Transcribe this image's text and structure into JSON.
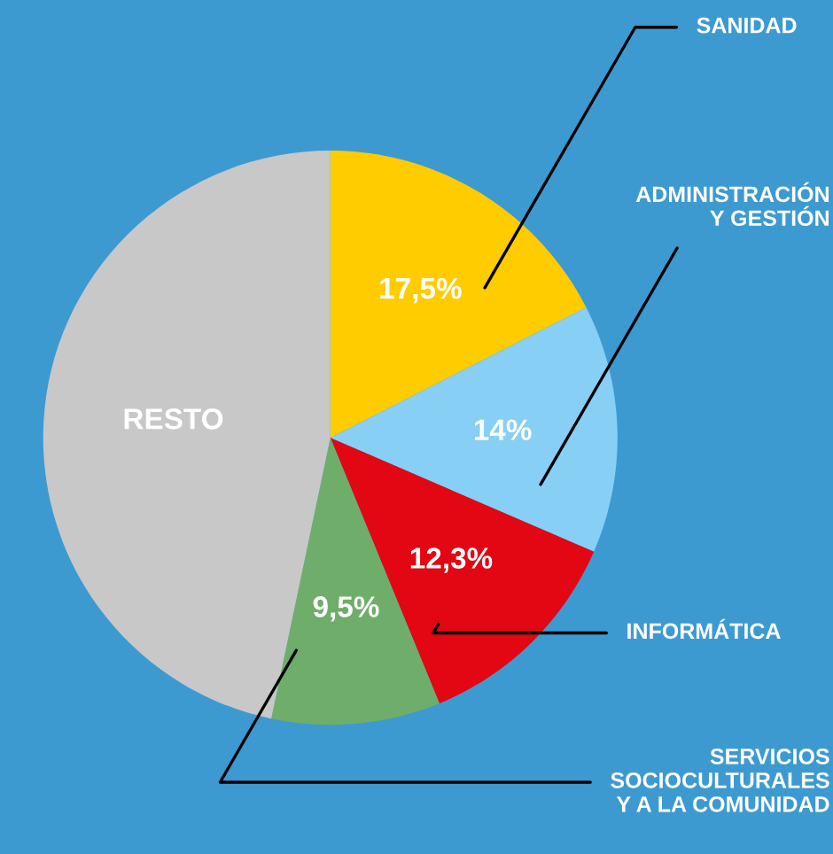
{
  "chart_data": {
    "type": "pie",
    "categories": [
      "SANIDAD",
      "ADMINISTRACIÓN\nY GESTIÓN",
      "INFORMÁTICA",
      "SERVICIOS\nSOCIOCULTURALES\nY A LA COMUNIDAD",
      "RESTO"
    ],
    "values": [
      17.5,
      14,
      12.3,
      9.5,
      46.7
    ],
    "colors": [
      "#ffcc00",
      "#87cff5",
      "#e30613",
      "#6fae6a",
      "#c8c8c8"
    ],
    "value_labels": [
      "17,5%",
      "14%",
      "12,3%",
      "9,5%",
      null
    ]
  }
}
